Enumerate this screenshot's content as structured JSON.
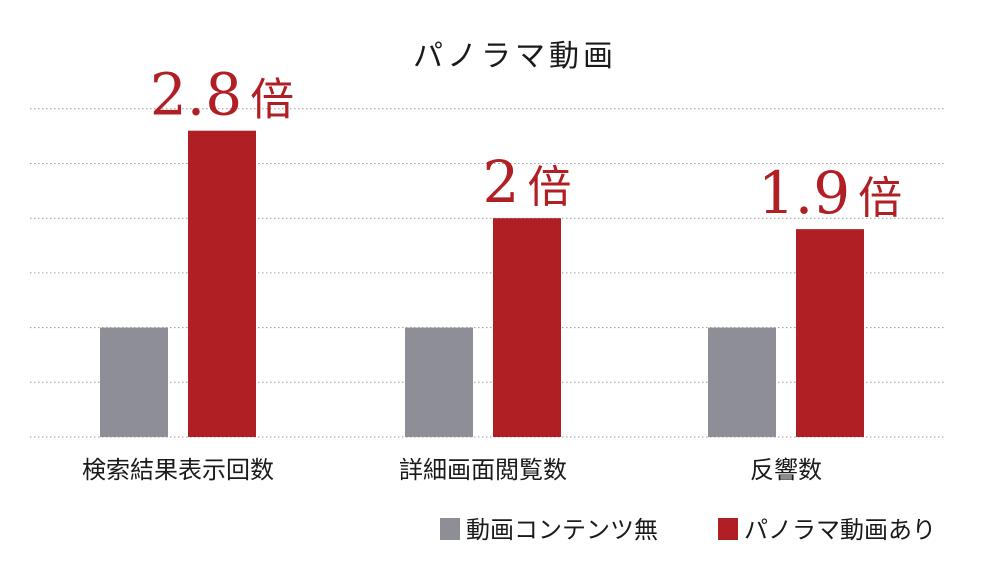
{
  "chart_data": {
    "type": "bar",
    "title": "パノラマ動画",
    "categories": [
      "検索結果表示回数",
      "詳細画面閲覧数",
      "反響数"
    ],
    "series": [
      {
        "name": "動画コンテンツ無",
        "color": "#8d8e96",
        "values": [
          1,
          1,
          1
        ]
      },
      {
        "name": "パノラマ動画あり",
        "color": "#b01f24",
        "values": [
          2.8,
          2,
          1.9
        ]
      }
    ],
    "annotations": [
      {
        "number": "2.8",
        "unit": "倍"
      },
      {
        "number": "2",
        "unit": "倍"
      },
      {
        "number": "1.9",
        "unit": "倍"
      }
    ],
    "annotation_color": "#b01f24",
    "ylim": [
      0,
      3.0
    ],
    "grid": true,
    "legend_position": "bottom-right"
  }
}
